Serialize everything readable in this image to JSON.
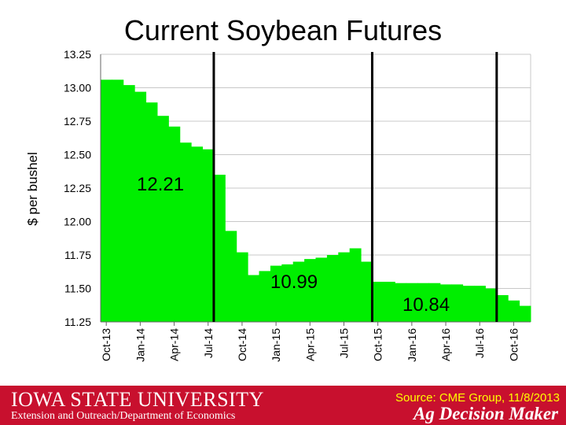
{
  "title": "Current Soybean Futures",
  "footer": {
    "university": "IOWA STATE UNIVERSITY",
    "department": "Extension and Outreach/Department of Economics",
    "source": "Source: CME Group, 11/8/2013",
    "brand": "Ag Decision Maker"
  },
  "colors": {
    "bars": "#00ee00",
    "footer": "#c8102e",
    "source_text": "#ffff00"
  },
  "chart_data": {
    "type": "bar",
    "title": "Current Soybean Futures",
    "xlabel": "",
    "ylabel": "$ per bushel",
    "ylim": [
      11.25,
      13.25
    ],
    "yticks": [
      11.25,
      11.5,
      11.75,
      12.0,
      12.25,
      12.5,
      12.75,
      13.0,
      13.25
    ],
    "ytick_labels": [
      "11.25",
      "11.50",
      "11.75",
      "12.00",
      "12.25",
      "12.50",
      "12.75",
      "13.00",
      "13.25"
    ],
    "grid": true,
    "categories": [
      "Oct-13",
      "Nov-13",
      "Dec-13",
      "Jan-14",
      "Feb-14",
      "Mar-14",
      "Apr-14",
      "May-14",
      "Jun-14",
      "Jul-14",
      "Aug-14",
      "Sep-14",
      "Oct-14",
      "Nov-14",
      "Dec-14",
      "Jan-15",
      "Feb-15",
      "Mar-15",
      "Apr-15",
      "May-15",
      "Jun-15",
      "Jul-15",
      "Aug-15",
      "Sep-15",
      "Oct-15",
      "Nov-15",
      "Dec-15",
      "Jan-16",
      "Feb-16",
      "Mar-16",
      "Apr-16",
      "May-16",
      "Jun-16",
      "Jul-16",
      "Aug-16",
      "Sep-16",
      "Oct-16",
      "Nov-16"
    ],
    "xtick_labels": [
      "Oct-13",
      "Jan-14",
      "Apr-14",
      "Jul-14",
      "Oct-14",
      "Jan-15",
      "Apr-15",
      "Jul-15",
      "Oct-15",
      "Jan-16",
      "Apr-16",
      "Jul-16",
      "Oct-16"
    ],
    "values": [
      13.06,
      13.06,
      13.02,
      12.97,
      12.89,
      12.79,
      12.71,
      12.59,
      12.56,
      12.54,
      12.35,
      11.93,
      11.77,
      11.6,
      11.63,
      11.67,
      11.68,
      11.7,
      11.72,
      11.73,
      11.75,
      11.77,
      11.8,
      11.7,
      11.55,
      11.55,
      11.54,
      11.54,
      11.54,
      11.54,
      11.53,
      11.53,
      11.52,
      11.52,
      11.5,
      11.45,
      11.41,
      11.37
    ],
    "dividers_after": [
      "Jul-14",
      "Sep-15",
      "Aug-16"
    ],
    "annotations": [
      "12.21",
      "10.99",
      "10.84"
    ]
  }
}
